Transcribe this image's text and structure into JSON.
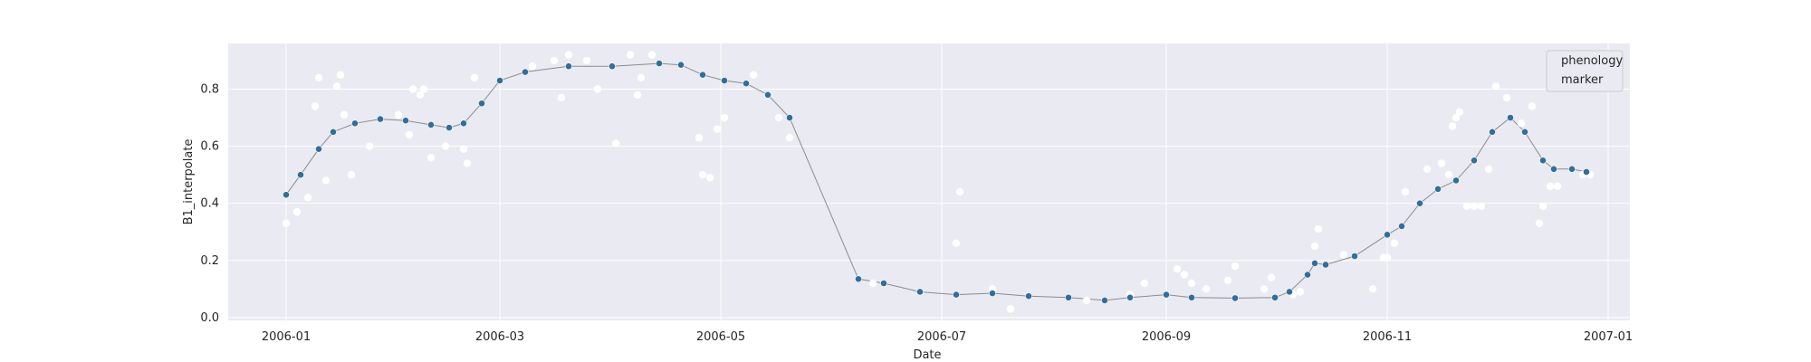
{
  "chart_data": {
    "type": "scatter",
    "title": "",
    "xlabel": "Date",
    "ylabel": "B1_interpolate",
    "x_ticks": [
      "2006-01",
      "2006-03",
      "2006-05",
      "2006-07",
      "2006-09",
      "2006-11",
      "2007-01"
    ],
    "y_ticks": [
      "0.0",
      "0.2",
      "0.4",
      "0.6",
      "0.8"
    ],
    "xlim": [
      "2005-12-16",
      "2007-01-07"
    ],
    "ylim": [
      -0.01,
      0.96
    ],
    "grid": true,
    "legend": {
      "placement": "top-right",
      "entries": [
        "phenology",
        "marker"
      ]
    },
    "colors": {
      "plot_background": "#eaeaf2",
      "grid": "#ffffff",
      "interpolated_line": "#8c8c8c",
      "interpolated_marker": "#2f6f9c",
      "interpolated_marker_edge": "#ffffff",
      "raw_marker": "#ffffff"
    },
    "series": [
      {
        "style": "line with filled markers",
        "points": [
          [
            "2006-01-01",
            0.43
          ],
          [
            "2006-01-05",
            0.5
          ],
          [
            "2006-01-10",
            0.59
          ],
          [
            "2006-01-14",
            0.65
          ],
          [
            "2006-01-20",
            0.68
          ],
          [
            "2006-01-27",
            0.695
          ],
          [
            "2006-02-03",
            0.69
          ],
          [
            "2006-02-10",
            0.675
          ],
          [
            "2006-02-15",
            0.665
          ],
          [
            "2006-02-19",
            0.68
          ],
          [
            "2006-02-24",
            0.75
          ],
          [
            "2006-03-01",
            0.83
          ],
          [
            "2006-03-08",
            0.86
          ],
          [
            "2006-03-20",
            0.88
          ],
          [
            "2006-04-01",
            0.88
          ],
          [
            "2006-04-14",
            0.89
          ],
          [
            "2006-04-20",
            0.885
          ],
          [
            "2006-04-26",
            0.85
          ],
          [
            "2006-05-02",
            0.83
          ],
          [
            "2006-05-08",
            0.82
          ],
          [
            "2006-05-14",
            0.78
          ],
          [
            "2006-05-20",
            0.7
          ],
          [
            "2006-06-08",
            0.135
          ],
          [
            "2006-06-15",
            0.12
          ],
          [
            "2006-06-25",
            0.09
          ],
          [
            "2006-07-05",
            0.08
          ],
          [
            "2006-07-15",
            0.085
          ],
          [
            "2006-07-25",
            0.075
          ],
          [
            "2006-08-05",
            0.07
          ],
          [
            "2006-08-15",
            0.06
          ],
          [
            "2006-08-22",
            0.07
          ],
          [
            "2006-09-01",
            0.08
          ],
          [
            "2006-09-08",
            0.07
          ],
          [
            "2006-09-20",
            0.068
          ],
          [
            "2006-10-01",
            0.07
          ],
          [
            "2006-10-05",
            0.09
          ],
          [
            "2006-10-10",
            0.15
          ],
          [
            "2006-10-12",
            0.19
          ],
          [
            "2006-10-15",
            0.185
          ],
          [
            "2006-10-23",
            0.215
          ],
          [
            "2006-11-01",
            0.29
          ],
          [
            "2006-11-05",
            0.32
          ],
          [
            "2006-11-10",
            0.4
          ],
          [
            "2006-11-15",
            0.45
          ],
          [
            "2006-11-20",
            0.48
          ],
          [
            "2006-11-25",
            0.55
          ],
          [
            "2006-11-30",
            0.65
          ],
          [
            "2006-12-05",
            0.7
          ],
          [
            "2006-12-09",
            0.65
          ],
          [
            "2006-12-14",
            0.55
          ],
          [
            "2006-12-17",
            0.52
          ],
          [
            "2006-12-22",
            0.52
          ],
          [
            "2006-12-26",
            0.51
          ]
        ]
      },
      {
        "style": "white markers",
        "points": [
          [
            "2006-01-01",
            0.33
          ],
          [
            "2006-01-04",
            0.37
          ],
          [
            "2006-01-07",
            0.42
          ],
          [
            "2006-01-09",
            0.74
          ],
          [
            "2006-01-10",
            0.84
          ],
          [
            "2006-01-12",
            0.48
          ],
          [
            "2006-01-15",
            0.81
          ],
          [
            "2006-01-16",
            0.85
          ],
          [
            "2006-01-17",
            0.71
          ],
          [
            "2006-01-19",
            0.5
          ],
          [
            "2006-01-24",
            0.6
          ],
          [
            "2006-02-01",
            0.71
          ],
          [
            "2006-02-04",
            0.64
          ],
          [
            "2006-02-05",
            0.8
          ],
          [
            "2006-02-07",
            0.78
          ],
          [
            "2006-02-08",
            0.8
          ],
          [
            "2006-02-10",
            0.56
          ],
          [
            "2006-02-14",
            0.6
          ],
          [
            "2006-02-19",
            0.59
          ],
          [
            "2006-02-20",
            0.54
          ],
          [
            "2006-02-22",
            0.84
          ],
          [
            "2006-03-10",
            0.88
          ],
          [
            "2006-03-16",
            0.9
          ],
          [
            "2006-03-18",
            0.77
          ],
          [
            "2006-03-20",
            0.92
          ],
          [
            "2006-03-25",
            0.9
          ],
          [
            "2006-03-28",
            0.8
          ],
          [
            "2006-04-02",
            0.61
          ],
          [
            "2006-04-06",
            0.92
          ],
          [
            "2006-04-08",
            0.78
          ],
          [
            "2006-04-09",
            0.84
          ],
          [
            "2006-04-12",
            0.92
          ],
          [
            "2006-04-25",
            0.63
          ],
          [
            "2006-04-26",
            0.5
          ],
          [
            "2006-04-28",
            0.49
          ],
          [
            "2006-04-30",
            0.66
          ],
          [
            "2006-05-02",
            0.7
          ],
          [
            "2006-05-10",
            0.85
          ],
          [
            "2006-05-17",
            0.7
          ],
          [
            "2006-05-20",
            0.63
          ],
          [
            "2006-06-12",
            0.12
          ],
          [
            "2006-07-05",
            0.26
          ],
          [
            "2006-07-06",
            0.44
          ],
          [
            "2006-07-15",
            0.1
          ],
          [
            "2006-07-20",
            0.03
          ],
          [
            "2006-08-10",
            0.06
          ],
          [
            "2006-08-22",
            0.08
          ],
          [
            "2006-08-26",
            0.12
          ],
          [
            "2006-09-04",
            0.17
          ],
          [
            "2006-09-06",
            0.15
          ],
          [
            "2006-09-08",
            0.12
          ],
          [
            "2006-09-12",
            0.1
          ],
          [
            "2006-09-18",
            0.13
          ],
          [
            "2006-09-20",
            0.18
          ],
          [
            "2006-09-28",
            0.1
          ],
          [
            "2006-09-30",
            0.14
          ],
          [
            "2006-10-06",
            0.08
          ],
          [
            "2006-10-08",
            0.09
          ],
          [
            "2006-10-12",
            0.25
          ],
          [
            "2006-10-13",
            0.31
          ],
          [
            "2006-10-20",
            0.22
          ],
          [
            "2006-10-28",
            0.1
          ],
          [
            "2006-10-31",
            0.21
          ],
          [
            "2006-11-01",
            0.21
          ],
          [
            "2006-11-03",
            0.26
          ],
          [
            "2006-11-06",
            0.44
          ],
          [
            "2006-11-12",
            0.52
          ],
          [
            "2006-11-16",
            0.54
          ],
          [
            "2006-11-18",
            0.5
          ],
          [
            "2006-11-19",
            0.67
          ],
          [
            "2006-11-20",
            0.7
          ],
          [
            "2006-11-21",
            0.72
          ],
          [
            "2006-11-23",
            0.39
          ],
          [
            "2006-11-25",
            0.39
          ],
          [
            "2006-11-27",
            0.39
          ],
          [
            "2006-11-29",
            0.52
          ],
          [
            "2006-12-01",
            0.81
          ],
          [
            "2006-12-04",
            0.77
          ],
          [
            "2006-12-08",
            0.68
          ],
          [
            "2006-12-11",
            0.74
          ],
          [
            "2006-12-13",
            0.33
          ],
          [
            "2006-12-14",
            0.39
          ],
          [
            "2006-12-16",
            0.46
          ],
          [
            "2006-12-18",
            0.46
          ],
          [
            "2006-12-25",
            0.5
          ],
          [
            "2006-12-27",
            0.5
          ]
        ]
      }
    ]
  }
}
